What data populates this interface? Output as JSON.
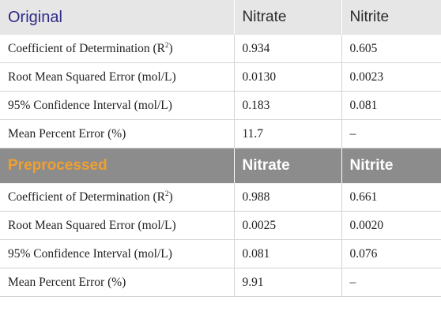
{
  "tables": [
    {
      "section": "Original",
      "columns": [
        "Nitrate",
        "Nitrite"
      ],
      "rows": [
        {
          "label": "Coefficient of Determination (R",
          "sup": "2",
          "label_end": ")",
          "nitrate": "0.934",
          "nitrite": "0.605"
        },
        {
          "label": "Root Mean Squared Error (mol/L)",
          "nitrate": "0.0130",
          "nitrite": "0.0023"
        },
        {
          "label": "95% Confidence Interval (mol/L)",
          "nitrate": "0.183",
          "nitrite": "0.081"
        },
        {
          "label": "Mean Percent Error (%)",
          "nitrate": "11.7",
          "nitrite": "–"
        }
      ]
    },
    {
      "section": "Preprocessed",
      "columns": [
        "Nitrate",
        "Nitrite"
      ],
      "rows": [
        {
          "label": "Coefficient of Determination (R",
          "sup": "2",
          "label_end": ")",
          "nitrate": "0.988",
          "nitrite": "0.661"
        },
        {
          "label": "Root Mean Squared Error (mol/L)",
          "nitrate": "0.0025",
          "nitrite": "0.0020"
        },
        {
          "label": "95% Confidence Interval (mol/L)",
          "nitrate": "0.081",
          "nitrite": "0.076"
        },
        {
          "label": "Mean Percent Error (%)",
          "nitrate": "9.91",
          "nitrite": "–"
        }
      ]
    }
  ]
}
